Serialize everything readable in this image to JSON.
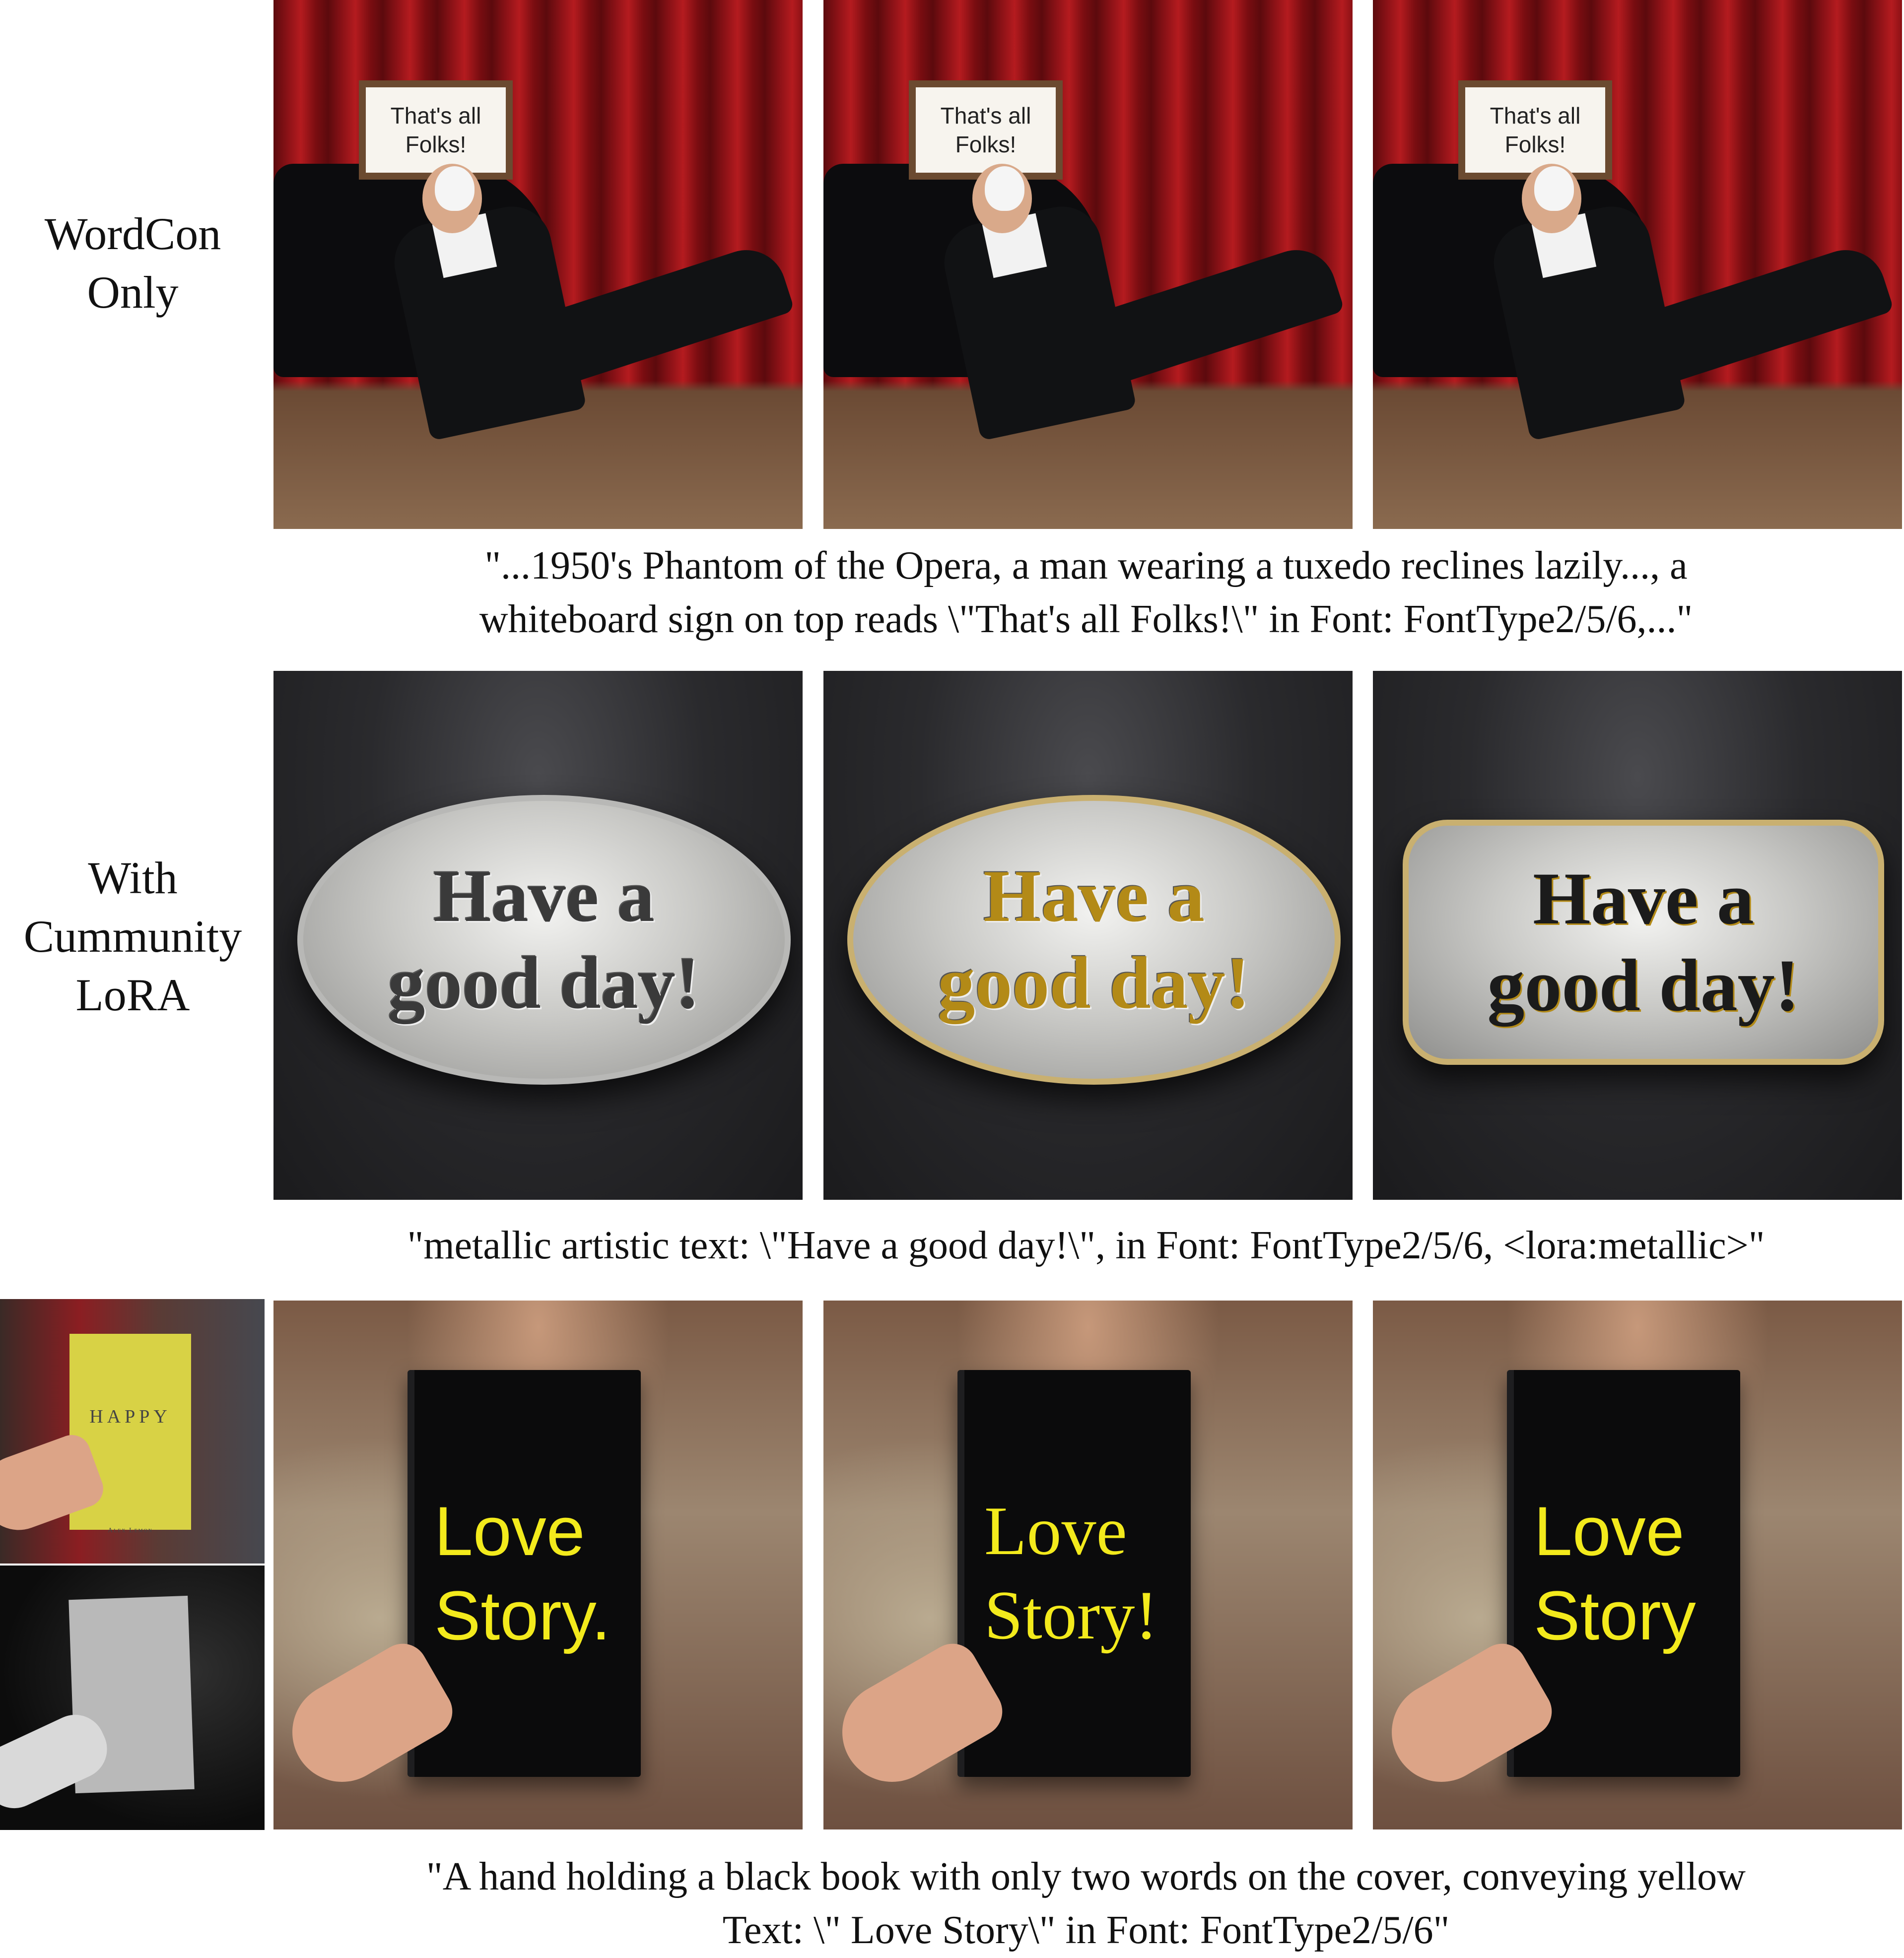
{
  "rows": [
    {
      "label_lines": [
        "WordCon",
        "Only"
      ],
      "caption_lines": [
        "\"...1950's Phantom of the Opera, a man wearing a tuxedo reclines lazily..., a",
        "whiteboard sign on top reads \\\"That's all Folks!\\\" in Font: FontType2/5/6,...\""
      ],
      "sign_lines": [
        "That's all",
        "Folks!"
      ]
    },
    {
      "label_lines": [
        "With",
        "Cummunity",
        "LoRA"
      ],
      "caption_lines": [
        "\"metallic artistic text: \\\"Have a good day!\\\", in Font: FontType2/5/6, <lora:metallic>\""
      ],
      "plaque_lines": [
        "Have a",
        "good day!"
      ]
    },
    {
      "caption_lines": [
        "\"A hand holding a black book with only two words on the cover, conveying yellow",
        "Text: \\\" Love Story\\\" in Font: FontType2/5/6\""
      ],
      "reference_title": "HAPPY",
      "reference_author": "Alex Lemon",
      "books": [
        {
          "line1": "Love",
          "line2": "Story."
        },
        {
          "line1": "Love",
          "line2": "Story!"
        },
        {
          "line1": "Love",
          "line2": "Story"
        }
      ]
    }
  ]
}
